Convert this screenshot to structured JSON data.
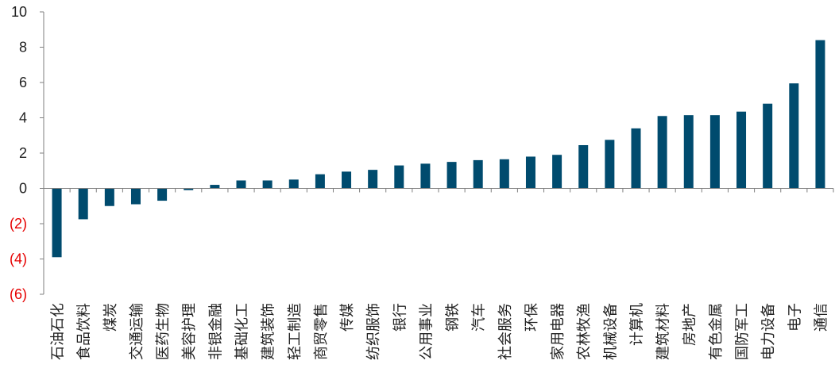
{
  "chart_data": {
    "type": "bar",
    "title": "",
    "xlabel": "",
    "ylabel": "",
    "ylim": [
      -6,
      10
    ],
    "yticks": [
      {
        "value": 10,
        "label": "10"
      },
      {
        "value": 8,
        "label": "8"
      },
      {
        "value": 6,
        "label": "6"
      },
      {
        "value": 4,
        "label": "4"
      },
      {
        "value": 2,
        "label": "2"
      },
      {
        "value": 0,
        "label": "0"
      },
      {
        "value": -2,
        "label": "(2)"
      },
      {
        "value": -4,
        "label": "(4)"
      },
      {
        "value": -6,
        "label": "(6)"
      }
    ],
    "grid": false,
    "bar_color": "#004b6e",
    "positive_tick_color": "#222222",
    "negative_tick_color": "#e60000",
    "categories": [
      "石油石化",
      "食品饮料",
      "煤炭",
      "交通运输",
      "医药生物",
      "美容护理",
      "非银金融",
      "基础化工",
      "建筑装饰",
      "轻工制造",
      "商贸零售",
      "传媒",
      "纺织服饰",
      "银行",
      "公用事业",
      "钢铁",
      "汽车",
      "社会服务",
      "环保",
      "家用电器",
      "农林牧渔",
      "机械设备",
      "计算机",
      "建筑材料",
      "房地产",
      "有色金属",
      "国防军工",
      "电力设备",
      "电子",
      "通信"
    ],
    "values": [
      -3.9,
      -1.75,
      -1.0,
      -0.9,
      -0.7,
      -0.1,
      0.2,
      0.45,
      0.45,
      0.5,
      0.8,
      0.95,
      1.05,
      1.3,
      1.4,
      1.5,
      1.6,
      1.65,
      1.8,
      1.9,
      2.45,
      2.75,
      3.4,
      4.1,
      4.15,
      4.15,
      4.35,
      4.8,
      5.95,
      8.4
    ]
  }
}
